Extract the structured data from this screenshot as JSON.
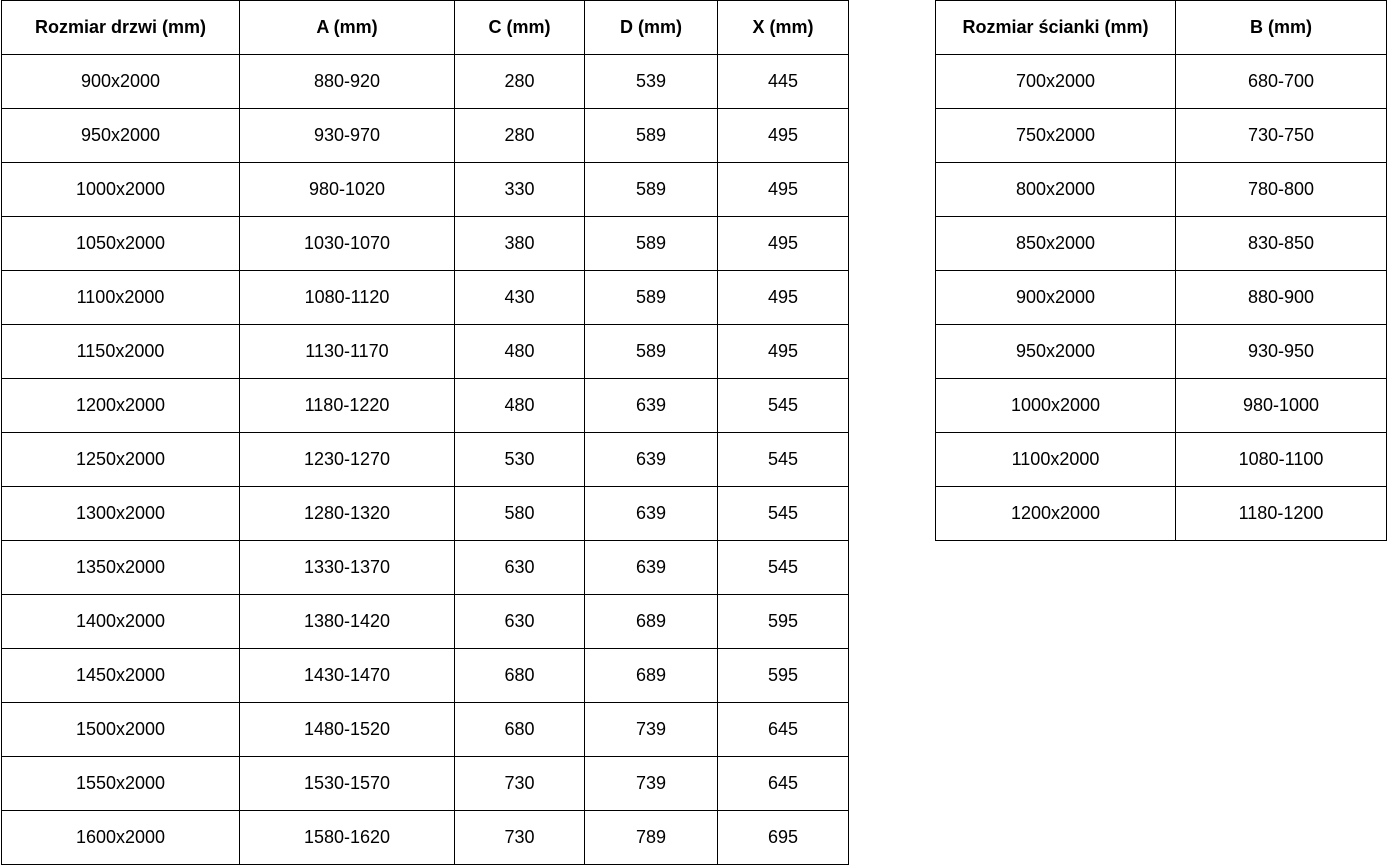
{
  "colors": {
    "background": "#ffffff",
    "border": "#000000",
    "text": "#000000"
  },
  "tables": {
    "doors": {
      "name": "door-sizes-table",
      "headers": [
        "Rozmiar drzwi (mm)",
        "A (mm)",
        "C (mm)",
        "D (mm)",
        "X (mm)"
      ],
      "rows": [
        [
          "900x2000",
          "880-920",
          "280",
          "539",
          "445"
        ],
        [
          "950x2000",
          "930-970",
          "280",
          "589",
          "495"
        ],
        [
          "1000x2000",
          "980-1020",
          "330",
          "589",
          "495"
        ],
        [
          "1050x2000",
          "1030-1070",
          "380",
          "589",
          "495"
        ],
        [
          "1100x2000",
          "1080-1120",
          "430",
          "589",
          "495"
        ],
        [
          "1150x2000",
          "1130-1170",
          "480",
          "589",
          "495"
        ],
        [
          "1200x2000",
          "1180-1220",
          "480",
          "639",
          "545"
        ],
        [
          "1250x2000",
          "1230-1270",
          "530",
          "639",
          "545"
        ],
        [
          "1300x2000",
          "1280-1320",
          "580",
          "639",
          "545"
        ],
        [
          "1350x2000",
          "1330-1370",
          "630",
          "639",
          "545"
        ],
        [
          "1400x2000",
          "1380-1420",
          "630",
          "689",
          "595"
        ],
        [
          "1450x2000",
          "1430-1470",
          "680",
          "689",
          "595"
        ],
        [
          "1500x2000",
          "1480-1520",
          "680",
          "739",
          "645"
        ],
        [
          "1550x2000",
          "1530-1570",
          "730",
          "739",
          "645"
        ],
        [
          "1600x2000",
          "1580-1620",
          "730",
          "789",
          "695"
        ]
      ]
    },
    "walls": {
      "name": "wall-sizes-table",
      "headers": [
        "Rozmiar ścianki (mm)",
        "B (mm)"
      ],
      "rows": [
        [
          "700x2000",
          "680-700"
        ],
        [
          "750x2000",
          "730-750"
        ],
        [
          "800x2000",
          "780-800"
        ],
        [
          "850x2000",
          "830-850"
        ],
        [
          "900x2000",
          "880-900"
        ],
        [
          "950x2000",
          "930-950"
        ],
        [
          "1000x2000",
          "980-1000"
        ],
        [
          "1100x2000",
          "1080-1100"
        ],
        [
          "1200x2000",
          "1180-1200"
        ]
      ]
    }
  }
}
